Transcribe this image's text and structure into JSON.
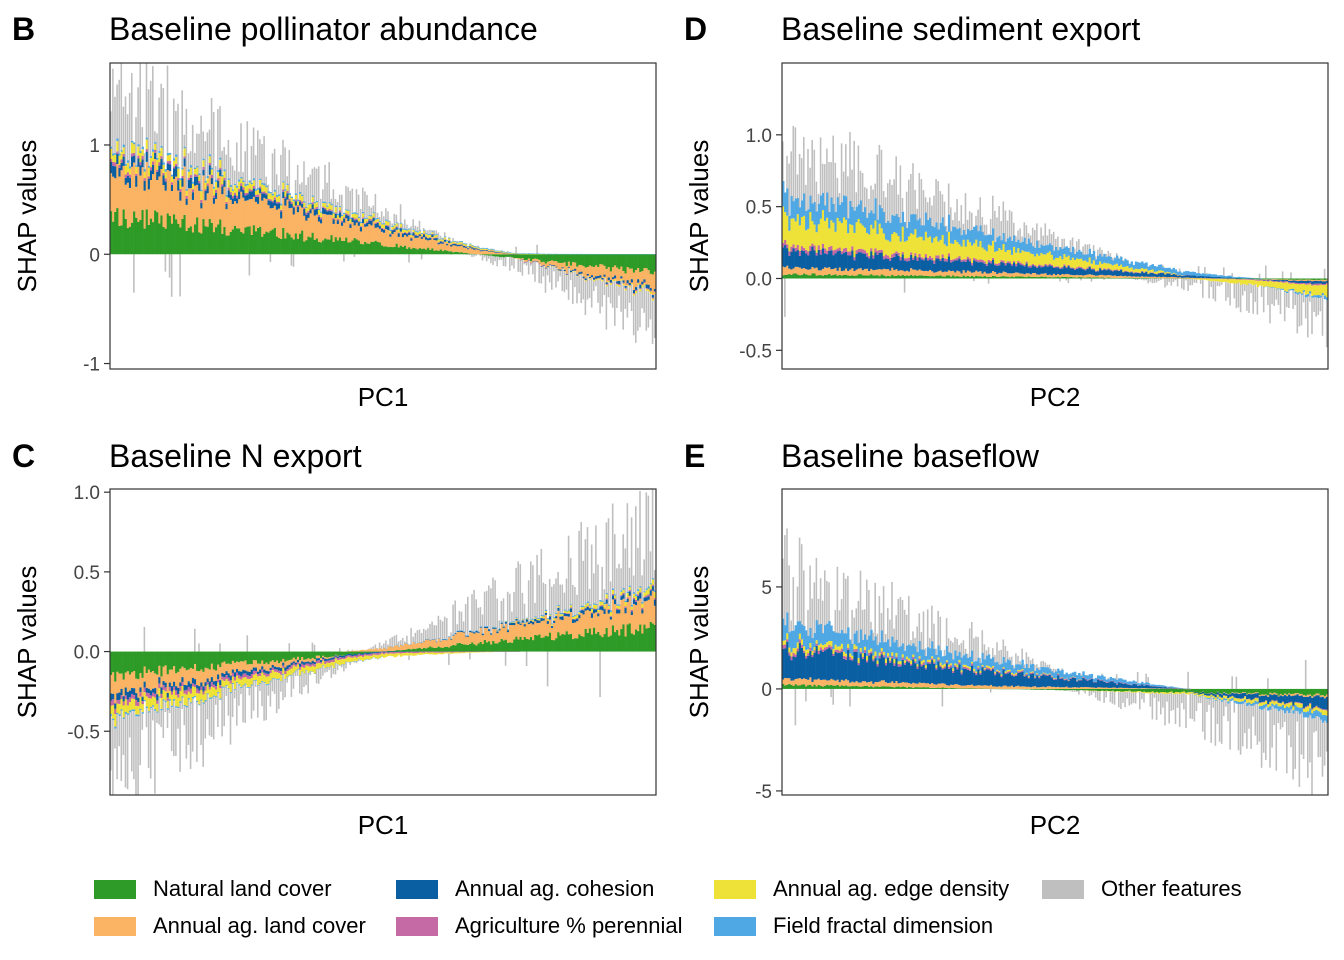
{
  "colors": {
    "natural": "#2e9a27",
    "annual_land": "#fbb364",
    "cohesion": "#0a5fa3",
    "perennial": "#c56aa4",
    "edge": "#eee138",
    "fractal": "#4fa8e3",
    "other": "#bfbfbf"
  },
  "legend": [
    {
      "key": "natural",
      "label": "Natural land cover"
    },
    {
      "key": "cohesion",
      "label": "Annual ag. cohesion"
    },
    {
      "key": "edge",
      "label": "Annual ag. edge density"
    },
    {
      "key": "other",
      "label": "Other features"
    },
    {
      "key": "annual_land",
      "label": "Annual ag. land cover"
    },
    {
      "key": "perennial",
      "label": "Agriculture % perennial"
    },
    {
      "key": "fractal",
      "label": "Field fractal dimension"
    }
  ],
  "chart_data": [
    {
      "panel": "B",
      "type": "bar",
      "title": "Baseline pollinator abundance",
      "xlabel": "PC1",
      "ylabel": "SHAP values",
      "ylim": [
        -1.05,
        1.75
      ],
      "yticks": [
        -1,
        0,
        1
      ],
      "ytick_labels": [
        "-1",
        "0",
        "1"
      ],
      "trend": {
        "natural": [
          0.35,
          -0.17
        ],
        "annual_land": [
          0.42,
          -0.15
        ],
        "cohesion": [
          0.09,
          -0.03
        ],
        "perennial": [
          0.03,
          -0.01
        ],
        "edge": [
          0.08,
          -0.02
        ],
        "fractal": [
          0.02,
          0.0
        ],
        "other": [
          0.55,
          -0.3
        ]
      }
    },
    {
      "panel": "D",
      "type": "bar",
      "title": "Baseline sediment export",
      "xlabel": "PC2",
      "ylabel": "SHAP values",
      "ylim": [
        -0.63,
        1.5
      ],
      "yticks": [
        -0.5,
        0.0,
        0.5,
        1.0
      ],
      "ytick_labels": [
        "-0.5",
        "0.0",
        "0.5",
        "1.0"
      ],
      "trend": {
        "natural": [
          0.03,
          -0.01
        ],
        "annual_land": [
          0.05,
          -0.01
        ],
        "cohesion": [
          0.12,
          -0.02
        ],
        "perennial": [
          0.03,
          -0.01
        ],
        "edge": [
          0.2,
          -0.07
        ],
        "fractal": [
          0.15,
          -0.02
        ],
        "other": [
          0.35,
          -0.2
        ]
      }
    },
    {
      "panel": "C",
      "type": "bar",
      "title": "Baseline N export",
      "xlabel": "PC1",
      "ylabel": "SHAP values",
      "ylim": [
        -0.9,
        1.02
      ],
      "yticks": [
        -0.5,
        0.0,
        0.5,
        1.0
      ],
      "ytick_labels": [
        "-0.5",
        "0.0",
        "0.5",
        "1.0"
      ],
      "trend": {
        "natural": [
          -0.15,
          0.15
        ],
        "annual_land": [
          -0.12,
          0.16
        ],
        "cohesion": [
          -0.04,
          0.03
        ],
        "perennial": [
          -0.03,
          0.01
        ],
        "edge": [
          -0.07,
          0.03
        ],
        "fractal": [
          -0.01,
          0.01
        ],
        "other": [
          -0.35,
          0.4
        ]
      }
    },
    {
      "panel": "E",
      "type": "bar",
      "title": "Baseline baseflow",
      "xlabel": "PC2",
      "ylabel": "SHAP values",
      "ylim": [
        -5.2,
        9.8
      ],
      "yticks": [
        -5,
        0,
        5
      ],
      "ytick_labels": [
        "-5",
        "0",
        "5"
      ],
      "trend": {
        "natural": [
          0.2,
          -0.3
        ],
        "annual_land": [
          0.3,
          -0.1
        ],
        "cohesion": [
          1.4,
          -0.5
        ],
        "perennial": [
          0.15,
          -0.05
        ],
        "edge": [
          0.25,
          -0.2
        ],
        "fractal": [
          0.9,
          -0.3
        ],
        "other": [
          2.5,
          -2.3
        ]
      }
    }
  ]
}
